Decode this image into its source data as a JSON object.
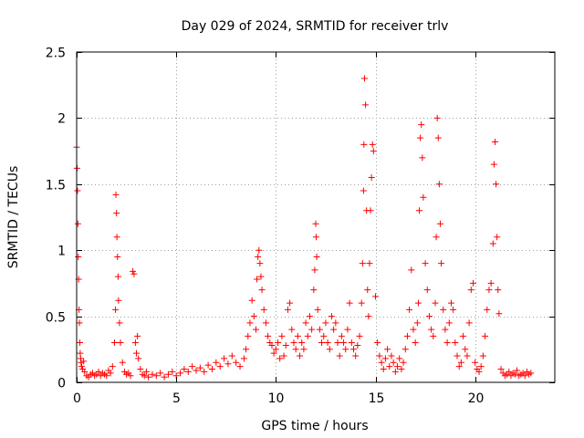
{
  "chart_data": {
    "type": "scatter",
    "title": "Day 029 of 2024, SRMTID for receiver trlv",
    "xlabel": "GPS time / hours",
    "ylabel": "SRMTID / TECUs",
    "xlim": [
      0,
      24
    ],
    "ylim": [
      0,
      2.5
    ],
    "xticks": [
      0,
      5,
      10,
      15,
      20
    ],
    "yticks": [
      0,
      0.5,
      1,
      1.5,
      2,
      2.5
    ],
    "ytick_labels": [
      "0",
      "0.5",
      "1",
      "1.5",
      "2",
      "2.5"
    ],
    "grid": true,
    "marker": "+",
    "color": "#ff0000",
    "series": [
      {
        "name": "SRMTID",
        "x": [
          0.0,
          0.02,
          0.04,
          0.06,
          0.08,
          0.1,
          0.12,
          0.14,
          0.16,
          0.18,
          0.2,
          0.22,
          0.25,
          0.3,
          0.35,
          0.4,
          0.5,
          0.6,
          0.7,
          0.8,
          0.9,
          1.0,
          1.1,
          1.2,
          1.3,
          1.4,
          1.5,
          1.6,
          1.7,
          1.8,
          1.9,
          1.95,
          1.97,
          2.0,
          2.02,
          2.05,
          2.08,
          2.1,
          2.15,
          2.2,
          2.3,
          2.4,
          2.5,
          2.6,
          2.7,
          2.82,
          2.88,
          2.95,
          3.0,
          3.05,
          3.1,
          3.2,
          3.3,
          3.4,
          3.5,
          3.6,
          3.8,
          4.0,
          4.2,
          4.4,
          4.6,
          4.8,
          5.0,
          5.2,
          5.4,
          5.6,
          5.8,
          6.0,
          6.2,
          6.4,
          6.6,
          6.8,
          7.0,
          7.2,
          7.4,
          7.6,
          7.8,
          8.0,
          8.2,
          8.4,
          8.5,
          8.6,
          8.7,
          8.8,
          8.9,
          9.0,
          9.05,
          9.1,
          9.15,
          9.2,
          9.25,
          9.3,
          9.4,
          9.5,
          9.6,
          9.7,
          9.8,
          9.9,
          10.0,
          10.1,
          10.2,
          10.3,
          10.4,
          10.5,
          10.6,
          10.7,
          10.8,
          10.9,
          11.0,
          11.1,
          11.2,
          11.3,
          11.4,
          11.5,
          11.6,
          11.7,
          11.8,
          11.9,
          11.95,
          12.0,
          12.02,
          12.05,
          12.1,
          12.2,
          12.3,
          12.4,
          12.5,
          12.6,
          12.7,
          12.8,
          12.9,
          13.0,
          13.1,
          13.2,
          13.3,
          13.4,
          13.5,
          13.6,
          13.7,
          13.8,
          13.9,
          14.0,
          14.1,
          14.2,
          14.3,
          14.35,
          14.4,
          14.42,
          14.45,
          14.5,
          14.55,
          14.6,
          14.65,
          14.7,
          14.75,
          14.8,
          14.85,
          14.9,
          15.0,
          15.1,
          15.2,
          15.3,
          15.4,
          15.5,
          15.6,
          15.7,
          15.8,
          15.9,
          16.0,
          16.1,
          16.2,
          16.3,
          16.4,
          16.5,
          16.6,
          16.7,
          16.8,
          16.9,
          17.0,
          17.1,
          17.15,
          17.2,
          17.25,
          17.3,
          17.35,
          17.4,
          17.5,
          17.6,
          17.7,
          17.8,
          17.9,
          18.0,
          18.05,
          18.1,
          18.15,
          18.2,
          18.25,
          18.3,
          18.4,
          18.5,
          18.6,
          18.7,
          18.8,
          18.9,
          19.0,
          19.1,
          19.2,
          19.3,
          19.4,
          19.5,
          19.6,
          19.7,
          19.8,
          19.9,
          20.0,
          20.1,
          20.2,
          20.3,
          20.4,
          20.5,
          20.6,
          20.7,
          20.8,
          20.9,
          20.95,
          21.0,
          21.05,
          21.1,
          21.15,
          21.2,
          21.3,
          21.4,
          21.5,
          21.6,
          21.7,
          21.8,
          21.9,
          22.0,
          22.1,
          22.2,
          22.3,
          22.4,
          22.5,
          22.6,
          22.7,
          22.8
        ],
        "y": [
          1.78,
          1.62,
          1.45,
          1.2,
          0.95,
          0.78,
          0.55,
          0.45,
          0.3,
          0.22,
          0.18,
          0.15,
          0.12,
          0.1,
          0.16,
          0.08,
          0.05,
          0.04,
          0.06,
          0.07,
          0.05,
          0.06,
          0.08,
          0.05,
          0.07,
          0.06,
          0.05,
          0.09,
          0.07,
          0.12,
          0.3,
          0.55,
          1.42,
          1.28,
          1.1,
          0.95,
          0.8,
          0.62,
          0.45,
          0.3,
          0.15,
          0.08,
          0.06,
          0.07,
          0.05,
          0.84,
          0.82,
          0.3,
          0.22,
          0.35,
          0.18,
          0.1,
          0.06,
          0.05,
          0.08,
          0.04,
          0.06,
          0.05,
          0.07,
          0.04,
          0.06,
          0.08,
          0.05,
          0.07,
          0.1,
          0.08,
          0.12,
          0.09,
          0.11,
          0.08,
          0.13,
          0.1,
          0.15,
          0.12,
          0.18,
          0.14,
          0.2,
          0.15,
          0.12,
          0.18,
          0.25,
          0.35,
          0.45,
          0.62,
          0.5,
          0.4,
          0.78,
          0.95,
          1.0,
          0.9,
          0.8,
          0.7,
          0.55,
          0.45,
          0.35,
          0.3,
          0.28,
          0.22,
          0.25,
          0.3,
          0.18,
          0.35,
          0.2,
          0.28,
          0.55,
          0.6,
          0.4,
          0.3,
          0.25,
          0.35,
          0.2,
          0.3,
          0.25,
          0.45,
          0.35,
          0.5,
          0.4,
          0.7,
          0.85,
          1.2,
          1.1,
          0.95,
          0.55,
          0.4,
          0.3,
          0.35,
          0.45,
          0.3,
          0.25,
          0.5,
          0.4,
          0.45,
          0.3,
          0.2,
          0.35,
          0.3,
          0.25,
          0.4,
          0.6,
          0.3,
          0.25,
          0.2,
          0.28,
          0.35,
          0.6,
          0.9,
          1.45,
          1.8,
          2.3,
          2.1,
          1.3,
          0.7,
          0.5,
          0.9,
          1.3,
          1.55,
          1.8,
          1.75,
          0.65,
          0.3,
          0.2,
          0.15,
          0.1,
          0.18,
          0.25,
          0.12,
          0.2,
          0.15,
          0.08,
          0.12,
          0.18,
          0.1,
          0.15,
          0.25,
          0.35,
          0.55,
          0.85,
          0.4,
          0.3,
          0.45,
          0.6,
          1.3,
          1.85,
          1.95,
          1.7,
          1.4,
          0.9,
          0.7,
          0.5,
          0.4,
          0.35,
          0.6,
          1.1,
          2.0,
          1.85,
          1.5,
          1.2,
          0.9,
          0.55,
          0.4,
          0.3,
          0.45,
          0.6,
          0.55,
          0.3,
          0.2,
          0.12,
          0.15,
          0.35,
          0.25,
          0.2,
          0.45,
          0.7,
          0.75,
          0.15,
          0.1,
          0.08,
          0.12,
          0.2,
          0.35,
          0.55,
          0.7,
          0.75,
          1.05,
          1.65,
          1.82,
          1.5,
          1.1,
          0.7,
          0.52,
          0.1,
          0.07,
          0.05,
          0.06,
          0.08,
          0.05,
          0.07,
          0.06,
          0.09,
          0.05,
          0.06,
          0.07,
          0.05,
          0.08,
          0.06,
          0.07
        ]
      }
    ]
  }
}
